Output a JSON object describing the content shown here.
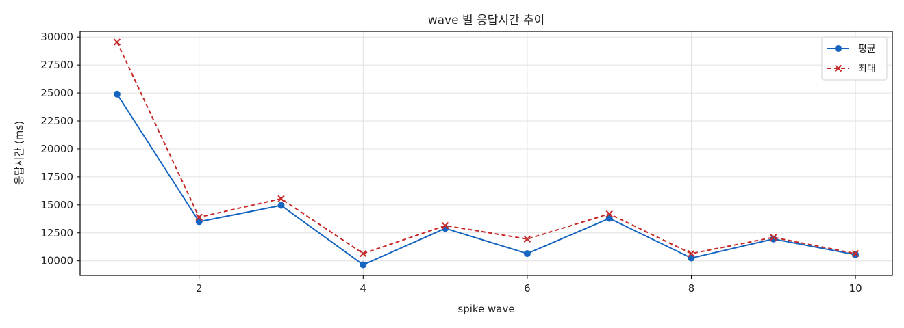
{
  "chart_data": {
    "type": "line",
    "title": "wave 별 응답시간 추이",
    "xlabel": "spike wave",
    "ylabel": "응답시간 (ms)",
    "x": [
      1,
      2,
      3,
      4,
      5,
      6,
      7,
      8,
      9,
      10
    ],
    "xlim": [
      0.55,
      10.45
    ],
    "ylim": [
      8700,
      30500
    ],
    "xticks": [
      2,
      4,
      6,
      8,
      10
    ],
    "yticks": [
      10000,
      12500,
      15000,
      17500,
      20000,
      22500,
      25000,
      27500,
      30000
    ],
    "grid": true,
    "legend_position": "top-right",
    "series": [
      {
        "name": "평균",
        "color": "#1565c0",
        "line_style": "solid",
        "marker": "circle",
        "values": [
          24900,
          13500,
          14950,
          9650,
          12900,
          10650,
          13800,
          10250,
          11950,
          10550
        ]
      },
      {
        "name": "최대",
        "color": "#c62828",
        "line_style": "dashed",
        "marker": "x",
        "values": [
          29550,
          13900,
          15550,
          10650,
          13150,
          11950,
          14200,
          10650,
          12100,
          10650
        ]
      }
    ]
  }
}
